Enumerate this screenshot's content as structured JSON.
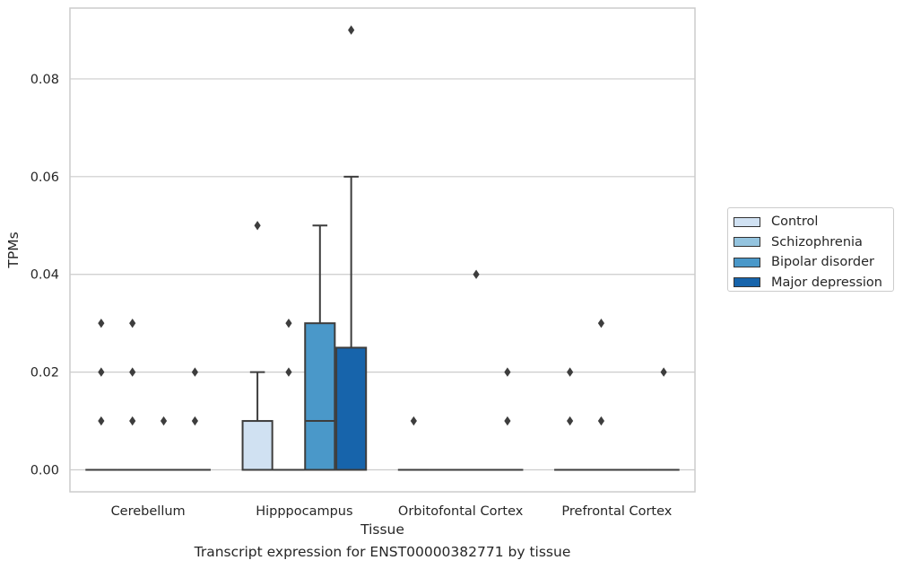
{
  "chart_data": {
    "type": "box",
    "title": "",
    "xlabel": "Tissue",
    "ylabel": "TPMs",
    "caption": "Transcript expression for ENST00000382771 by tissue",
    "ylim": [
      -0.0045,
      0.0945
    ],
    "yticks": [
      0.0,
      0.02,
      0.04,
      0.06,
      0.08
    ],
    "ytick_labels": [
      "0.00",
      "0.02",
      "0.04",
      "0.06",
      "0.08"
    ],
    "grid": "horizontal",
    "legend_position": "right, outside plot",
    "categories": [
      "Cerebellum",
      "Hipppocampus",
      "Orbitofontal Cortex",
      "Prefrontal Cortex"
    ],
    "series": [
      {
        "name": "Control",
        "color": "#d0e1f2",
        "boxes": [
          {
            "q1": 0,
            "median": 0,
            "q3": 0,
            "whisker_low": 0,
            "whisker_high": 0,
            "outliers": [
              0.03,
              0.02,
              0.01
            ]
          },
          {
            "q1": 0,
            "median": 0,
            "q3": 0.01,
            "whisker_low": 0,
            "whisker_high": 0.02,
            "outliers": [
              0.05
            ]
          },
          {
            "q1": 0,
            "median": 0,
            "q3": 0,
            "whisker_low": 0,
            "whisker_high": 0,
            "outliers": [
              0.01
            ]
          },
          {
            "q1": 0,
            "median": 0,
            "q3": 0,
            "whisker_low": 0,
            "whisker_high": 0,
            "outliers": [
              0.02,
              0.01
            ]
          }
        ]
      },
      {
        "name": "Schizophrenia",
        "color": "#94c4df",
        "boxes": [
          {
            "q1": 0,
            "median": 0,
            "q3": 0,
            "whisker_low": 0,
            "whisker_high": 0,
            "outliers": [
              0.03,
              0.02,
              0.01
            ]
          },
          {
            "q1": 0,
            "median": 0,
            "q3": 0,
            "whisker_low": 0,
            "whisker_high": 0,
            "outliers": [
              0.03,
              0.02
            ]
          },
          {
            "q1": 0,
            "median": 0,
            "q3": 0,
            "whisker_low": 0,
            "whisker_high": 0,
            "outliers": []
          },
          {
            "q1": 0,
            "median": 0,
            "q3": 0,
            "whisker_low": 0,
            "whisker_high": 0,
            "outliers": [
              0.03,
              0.01
            ]
          }
        ]
      },
      {
        "name": "Bipolar disorder",
        "color": "#4a98c9",
        "boxes": [
          {
            "q1": 0,
            "median": 0,
            "q3": 0,
            "whisker_low": 0,
            "whisker_high": 0,
            "outliers": [
              0.01
            ]
          },
          {
            "q1": 0,
            "median": 0.01,
            "q3": 0.03,
            "whisker_low": 0,
            "whisker_high": 0.05,
            "outliers": []
          },
          {
            "q1": 0,
            "median": 0,
            "q3": 0,
            "whisker_low": 0,
            "whisker_high": 0,
            "outliers": [
              0.04
            ]
          },
          {
            "q1": 0,
            "median": 0,
            "q3": 0,
            "whisker_low": 0,
            "whisker_high": 0,
            "outliers": []
          }
        ]
      },
      {
        "name": "Major depression",
        "color": "#1764ab",
        "boxes": [
          {
            "q1": 0,
            "median": 0,
            "q3": 0,
            "whisker_low": 0,
            "whisker_high": 0,
            "outliers": [
              0.02,
              0.01
            ]
          },
          {
            "q1": 0,
            "median": 0,
            "q3": 0.025,
            "whisker_low": 0,
            "whisker_high": 0.06,
            "outliers": [
              0.09
            ]
          },
          {
            "q1": 0,
            "median": 0,
            "q3": 0,
            "whisker_low": 0,
            "whisker_high": 0,
            "outliers": [
              0.02,
              0.01
            ]
          },
          {
            "q1": 0,
            "median": 0,
            "q3": 0,
            "whisker_low": 0,
            "whisker_high": 0,
            "outliers": [
              0.02
            ]
          }
        ]
      }
    ]
  }
}
